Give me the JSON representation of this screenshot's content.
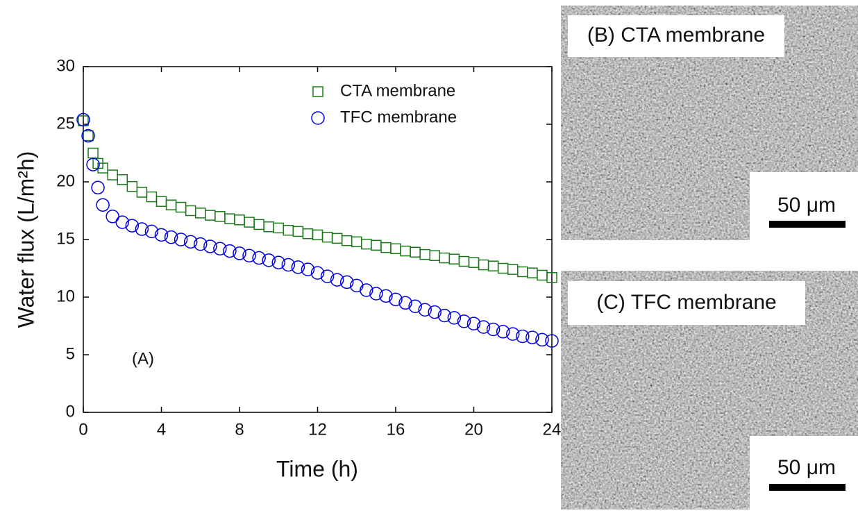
{
  "chart_data": {
    "type": "scatter",
    "xlabel": "Time (h)",
    "ylabel": "Water flux (L/m²h)",
    "annotation": "(A)",
    "x": [
      0,
      0.25,
      0.5,
      0.75,
      1,
      1.5,
      2,
      2.5,
      3,
      3.5,
      4,
      4.5,
      5,
      5.5,
      6,
      6.5,
      7,
      7.5,
      8,
      8.5,
      9,
      9.5,
      10,
      10.5,
      11,
      11.5,
      12,
      12.5,
      13,
      13.5,
      14,
      14.5,
      15,
      15.5,
      16,
      16.5,
      17,
      17.5,
      18,
      18.5,
      19,
      19.5,
      20,
      20.5,
      21,
      21.5,
      22,
      22.5,
      23,
      23.5,
      24
    ],
    "series": [
      {
        "name": "CTA membrane",
        "color": "#1a7a1a",
        "marker": "square",
        "values": [
          25.3,
          24,
          22.5,
          21.6,
          21.2,
          20.6,
          20.2,
          19.6,
          19.1,
          18.7,
          18.3,
          18.0,
          17.8,
          17.5,
          17.3,
          17.1,
          17.0,
          16.8,
          16.7,
          16.5,
          16.3,
          16.1,
          16.0,
          15.8,
          15.7,
          15.5,
          15.4,
          15.2,
          15.1,
          14.9,
          14.8,
          14.6,
          14.5,
          14.3,
          14.2,
          14.0,
          13.9,
          13.7,
          13.6,
          13.4,
          13.3,
          13.1,
          13.0,
          12.8,
          12.7,
          12.5,
          12.4,
          12.2,
          12.1,
          11.9,
          11.7
        ]
      },
      {
        "name": "TFC membrane",
        "color": "#0000e0",
        "marker": "circle",
        "values": [
          25.4,
          24.0,
          21.5,
          19.5,
          18.0,
          17.0,
          16.5,
          16.2,
          15.9,
          15.7,
          15.4,
          15.2,
          15.0,
          14.8,
          14.6,
          14.4,
          14.2,
          14.0,
          13.8,
          13.6,
          13.4,
          13.2,
          13.0,
          12.8,
          12.6,
          12.4,
          12.1,
          11.8,
          11.5,
          11.3,
          11.0,
          10.6,
          10.3,
          10.1,
          9.8,
          9.5,
          9.2,
          8.9,
          8.7,
          8.4,
          8.2,
          7.9,
          7.7,
          7.4,
          7.2,
          7.0,
          6.8,
          6.6,
          6.5,
          6.3,
          6.2
        ]
      }
    ],
    "xlim": [
      0,
      24
    ],
    "xticks": [
      0,
      4,
      8,
      12,
      16,
      20,
      24
    ],
    "ylim": [
      0,
      30
    ],
    "yticks": [
      0,
      5,
      10,
      15,
      20,
      25,
      30
    ],
    "legend": "upper right"
  },
  "images": [
    {
      "label": "(B) CTA membrane",
      "label_color": "#1a9a3a",
      "scale_bar": "50 μm"
    },
    {
      "label": "(C) TFC membrane",
      "label_color": "#1a1ae0",
      "scale_bar": "50 μm"
    }
  ]
}
